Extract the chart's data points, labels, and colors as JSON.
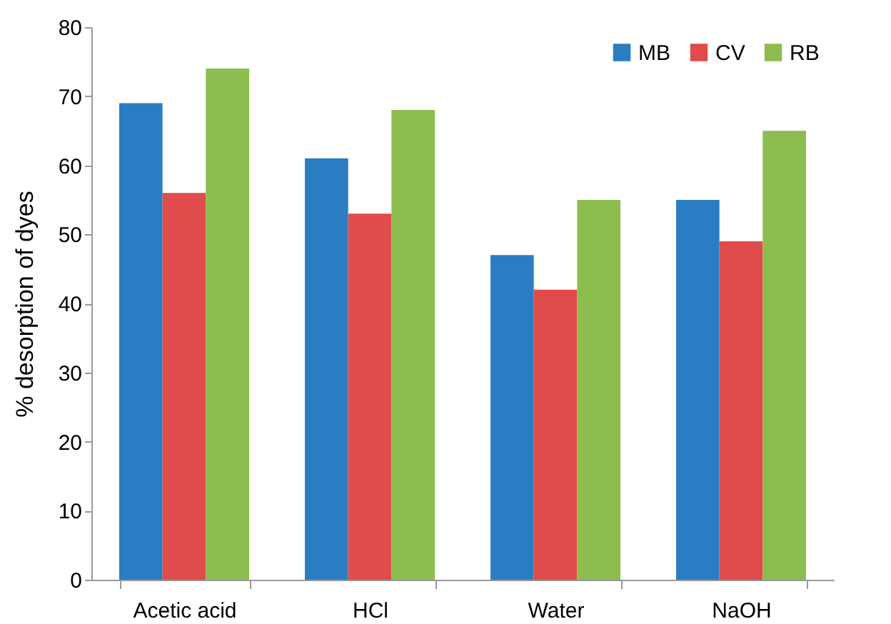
{
  "chart_data": {
    "type": "bar",
    "ylabel": "% desorption of dyes",
    "categories": [
      "Acetic acid",
      "HCl",
      "Water",
      "NaOH"
    ],
    "series": [
      {
        "name": "MB",
        "color": "#2a7dc2",
        "values": [
          69,
          61,
          47,
          55
        ]
      },
      {
        "name": "CV",
        "color": "#e04b4b",
        "values": [
          56,
          53,
          42,
          49
        ]
      },
      {
        "name": "RB",
        "color": "#8cbd4e",
        "values": [
          74,
          68,
          55,
          65
        ]
      }
    ],
    "ylim": [
      0,
      80
    ],
    "yticks": [
      0,
      10,
      20,
      30,
      40,
      50,
      60,
      70,
      80
    ],
    "grid": false,
    "legend": "top right"
  }
}
